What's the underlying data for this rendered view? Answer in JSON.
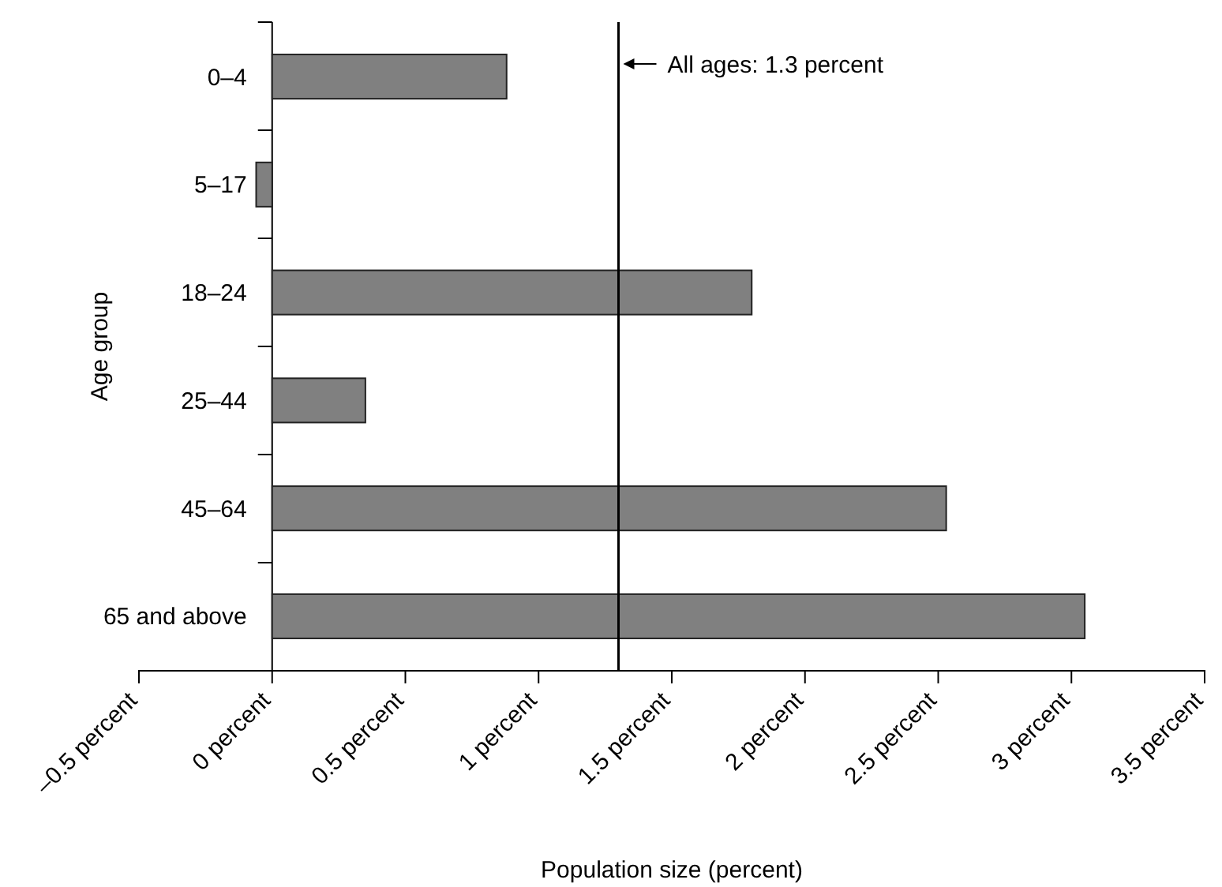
{
  "chart_data": {
    "type": "bar",
    "orientation": "horizontal",
    "xlabel": "Population size (percent)",
    "ylabel": "Age group",
    "categories": [
      "0–4",
      "5–17",
      "18–24",
      "25–44",
      "45–64",
      "65 and above"
    ],
    "values": [
      0.88,
      -0.06,
      1.8,
      0.35,
      2.53,
      3.05
    ],
    "color": "#808080",
    "xlim": [
      -0.5,
      3.5
    ],
    "xticks": [
      {
        "value": -0.5,
        "label": "–0.5 percent"
      },
      {
        "value": 0,
        "label": "0 percent"
      },
      {
        "value": 0.5,
        "label": "0.5 percent"
      },
      {
        "value": 1,
        "label": "1 percent"
      },
      {
        "value": 1.5,
        "label": "1.5 percent"
      },
      {
        "value": 2,
        "label": "2 percent"
      },
      {
        "value": 2.5,
        "label": "2.5 percent"
      },
      {
        "value": 3,
        "label": "3 percent"
      },
      {
        "value": 3.5,
        "label": "3.5 percent"
      }
    ],
    "ref_lines": [
      {
        "axis": "x",
        "value": 1.3,
        "label": "All ages: 1.3 percent",
        "color": "#000000"
      }
    ],
    "grid": false
  }
}
